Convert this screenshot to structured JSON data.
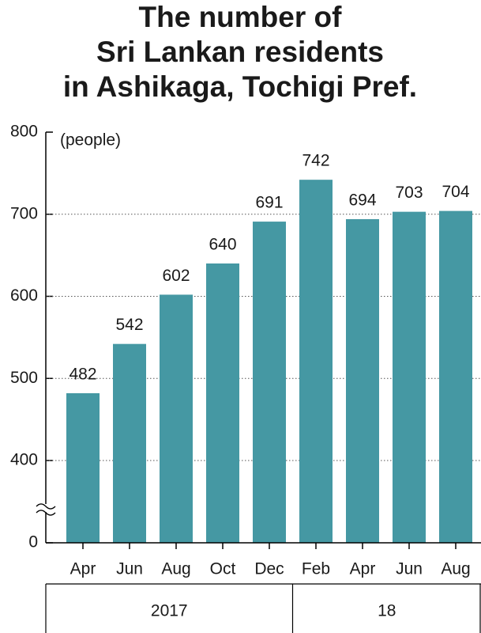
{
  "chart_data": {
    "type": "bar",
    "title": [
      "The number of",
      "Sri Lankan residents",
      "in Ashikaga, Tochigi Pref."
    ],
    "y_label": "(people)",
    "categories": [
      "Apr",
      "Jun",
      "Aug",
      "Oct",
      "Dec",
      "Feb",
      "Apr",
      "Jun",
      "Aug"
    ],
    "groups": [
      {
        "label": "2017",
        "categories": [
          "Apr",
          "Jun",
          "Aug",
          "Oct",
          "Dec"
        ]
      },
      {
        "label": "18",
        "categories": [
          "Feb",
          "Apr",
          "Jun",
          "Aug"
        ]
      }
    ],
    "values": [
      482,
      542,
      602,
      640,
      691,
      742,
      694,
      703,
      704
    ],
    "color": "#4598a3",
    "ylim": [
      0,
      800
    ],
    "yticks": [
      0,
      400,
      500,
      600,
      700,
      800
    ],
    "axis_break": true,
    "grid": true
  }
}
